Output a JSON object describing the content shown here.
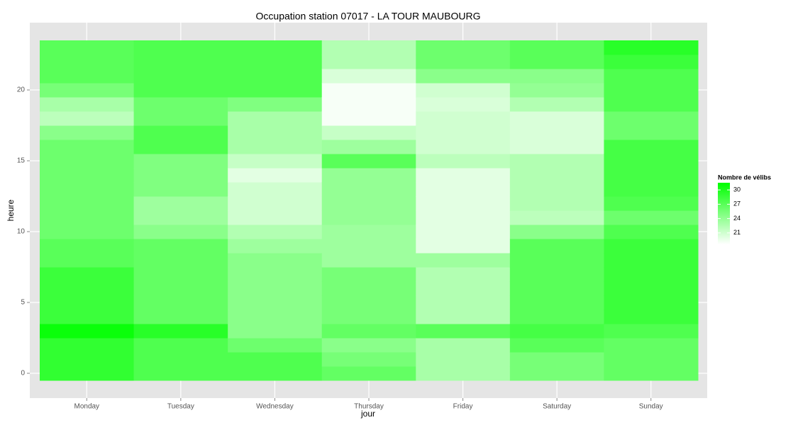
{
  "chart_data": {
    "type": "heatmap",
    "title": "Occupation station 07017 - LA TOUR MAUBOURG",
    "x_label": "jour",
    "y_label": "heure",
    "categories": [
      "Monday",
      "Tuesday",
      "Wednesday",
      "Thursday",
      "Friday",
      "Saturday",
      "Sunday"
    ],
    "y": [
      0,
      1,
      2,
      3,
      4,
      5,
      6,
      7,
      8,
      9,
      10,
      11,
      12,
      13,
      14,
      15,
      16,
      17,
      18,
      19,
      20,
      21,
      22,
      23
    ],
    "values": [
      [
        29,
        29,
        29,
        31,
        28.5,
        28.5,
        28.5,
        28.5,
        27,
        27,
        26,
        26,
        26,
        26,
        26,
        26,
        26,
        24.5,
        22,
        23,
        25.5,
        27,
        27,
        27
      ],
      [
        27.5,
        27.5,
        27.5,
        29.5,
        26.5,
        26.5,
        26.5,
        26.5,
        26.5,
        26.5,
        24.5,
        23.5,
        23.5,
        25,
        25,
        25,
        27.5,
        27.5,
        26,
        26,
        27.5,
        27.5,
        27.5,
        27.5
      ],
      [
        27.5,
        27.5,
        26,
        24.5,
        24.5,
        24.5,
        24.5,
        24.5,
        24.5,
        23.5,
        22.5,
        21,
        21,
        21,
        20,
        21.5,
        23,
        23,
        23,
        25,
        27.5,
        27.5,
        27.5,
        27.5
      ],
      [
        26.5,
        25.5,
        24.5,
        26.5,
        25.5,
        25.5,
        25.5,
        25.5,
        23.5,
        23.5,
        23.5,
        24,
        24,
        24,
        24,
        27,
        23.5,
        21.5,
        19,
        19,
        19,
        20.5,
        22.5,
        22.5
      ],
      [
        23,
        23,
        23,
        27,
        22.5,
        22.5,
        22.5,
        22.5,
        23.5,
        20,
        20,
        20,
        20,
        20,
        20,
        22,
        21,
        21,
        21,
        20.5,
        21,
        24.5,
        26,
        26
      ],
      [
        25.5,
        25.5,
        27,
        28,
        27,
        27,
        27,
        27,
        27,
        27,
        24.5,
        22,
        22.5,
        22.5,
        22.5,
        22.5,
        20.5,
        20.5,
        20.5,
        22.5,
        24,
        24.5,
        27,
        27
      ],
      [
        26.5,
        26.5,
        26.5,
        27.5,
        28.5,
        28.5,
        28.5,
        28.5,
        28.5,
        28.5,
        27.5,
        26,
        27.5,
        28,
        28,
        28,
        28,
        26,
        26,
        27.5,
        27.5,
        27.5,
        28.5,
        29.5
      ]
    ],
    "ylim": [
      -1.75,
      24.75
    ],
    "yticks": [
      0,
      5,
      10,
      15,
      20
    ],
    "legend_title": "Nombre de vélibs",
    "colorlim": [
      18.6,
      31.5
    ],
    "color_low": "#ffffff",
    "color_high": "#00ff00",
    "legend_ticks": [
      21,
      24,
      27,
      30
    ],
    "grid": true
  }
}
